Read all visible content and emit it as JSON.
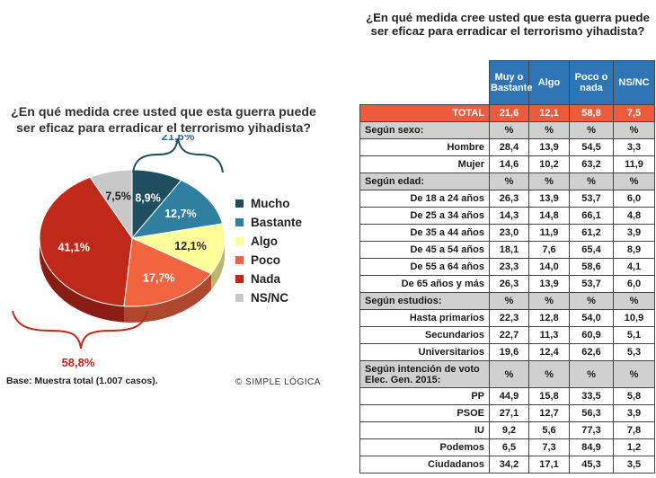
{
  "chart_data": {
    "type": "pie",
    "title": "¿En qué medida cree usted que esta guerra puede ser eficaz para erradicar el terrorismo yihadista?",
    "slices": [
      {
        "name": "Mucho",
        "value": 8.9,
        "label": "8,9%",
        "color": "#1f4e5f"
      },
      {
        "name": "Bastante",
        "value": 12.7,
        "label": "12,7%",
        "color": "#2e7fa0"
      },
      {
        "name": "Algo",
        "value": 12.1,
        "label": "12,1%",
        "color": "#ffff99"
      },
      {
        "name": "Poco",
        "value": 17.7,
        "label": "17,7%",
        "color": "#f06440"
      },
      {
        "name": "Nada",
        "value": 41.1,
        "label": "41,1%",
        "color": "#c0281a"
      },
      {
        "name": "NS/NC",
        "value": 7.5,
        "label": "7,5%",
        "color": "#c8c8c8"
      }
    ],
    "group_labels": {
      "positive": "21,6%",
      "negative": "58,8%"
    },
    "legend_position": "right"
  },
  "base_note": "Base: Muestra total (1.007 casos).",
  "brand": "SIMPLE LÓGICA",
  "table": {
    "title": "¿En qué medida cree usted que esta guerra puede ser eficaz para erradicar el terrorismo yihadista?",
    "headers": [
      "Muy o Bastante",
      "Algo",
      "Poco o nada",
      "NS/NC"
    ],
    "rows": [
      {
        "kind": "total",
        "label": "TOTAL",
        "values": [
          "21,6",
          "12,1",
          "58,8",
          "7,5"
        ]
      },
      {
        "kind": "section",
        "label": "Según sexo:",
        "values": [
          "%",
          "%",
          "%",
          "%"
        ]
      },
      {
        "kind": "data",
        "label": "Hombre",
        "values": [
          "28,4",
          "13,9",
          "54,5",
          "3,3"
        ]
      },
      {
        "kind": "data",
        "label": "Mujer",
        "values": [
          "14,6",
          "10,2",
          "63,2",
          "11,9"
        ]
      },
      {
        "kind": "section",
        "label": "Según edad:",
        "values": [
          "%",
          "%",
          "%",
          "%"
        ]
      },
      {
        "kind": "data",
        "label": "De 18 a 24 años",
        "values": [
          "26,3",
          "13,9",
          "53,7",
          "6,0"
        ]
      },
      {
        "kind": "data",
        "label": "De 25 a 34 años",
        "values": [
          "14,3",
          "14,8",
          "66,1",
          "4,8"
        ]
      },
      {
        "kind": "data",
        "label": "De 35 a 44 años",
        "values": [
          "23,0",
          "11,9",
          "61,2",
          "3,9"
        ]
      },
      {
        "kind": "data",
        "label": "De 45 a 54 años",
        "values": [
          "18,1",
          "7,6",
          "65,4",
          "8,9"
        ]
      },
      {
        "kind": "data",
        "label": "De 55 a 64 años",
        "values": [
          "23,3",
          "14,0",
          "58,6",
          "4,1"
        ]
      },
      {
        "kind": "data",
        "label": "De 65 años y más",
        "values": [
          "26,3",
          "13,9",
          "53,7",
          "6,0"
        ]
      },
      {
        "kind": "section",
        "label": "Según estudios:",
        "values": [
          "%",
          "%",
          "%",
          "%"
        ]
      },
      {
        "kind": "data",
        "label": "Hasta primarios",
        "values": [
          "22,3",
          "12,8",
          "54,0",
          "10,9"
        ]
      },
      {
        "kind": "data",
        "label": "Secundarios",
        "values": [
          "22,7",
          "11,3",
          "60,9",
          "5,1"
        ]
      },
      {
        "kind": "data",
        "label": "Universitarios",
        "values": [
          "19,6",
          "12,4",
          "62,6",
          "5,3"
        ]
      },
      {
        "kind": "section",
        "label": "Según intención de voto Elec. Gen. 2015:",
        "values": [
          "%",
          "%",
          "%",
          "%"
        ],
        "tall": true
      },
      {
        "kind": "data",
        "label": "PP",
        "values": [
          "44,9",
          "15,8",
          "33,5",
          "5,8"
        ]
      },
      {
        "kind": "data",
        "label": "PSOE",
        "values": [
          "27,1",
          "12,7",
          "56,3",
          "3,9"
        ]
      },
      {
        "kind": "data",
        "label": "IU",
        "values": [
          "9,2",
          "5,6",
          "77,3",
          "7,8"
        ]
      },
      {
        "kind": "data",
        "label": "Podemos",
        "values": [
          "6,5",
          "7,3",
          "84,9",
          "1,2"
        ]
      },
      {
        "kind": "data",
        "label": "Ciudadanos",
        "values": [
          "34,2",
          "17,1",
          "45,3",
          "3,5"
        ]
      }
    ]
  }
}
